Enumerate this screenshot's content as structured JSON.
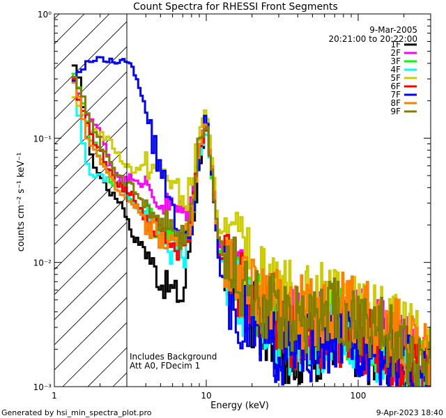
{
  "chart_data": {
    "type": "line",
    "title": "Count Spectra for RHESSI Front Segments",
    "xlabel": "Energy (keV)",
    "ylabel": "counts cm⁻² s⁻¹ keV⁻¹",
    "xscale": "log",
    "yscale": "log",
    "xlim": [
      1,
      300
    ],
    "ylim": [
      0.001,
      1
    ],
    "xticks": [
      "1",
      "10",
      "100"
    ],
    "yticks": [
      "10⁻³",
      "10⁻²",
      "10⁻¹",
      "10⁰"
    ],
    "date": "9-Mar-2005",
    "time_range": "20:21:00 to 20:22:00",
    "notes": [
      "Includes Background",
      "Att A0, FDecim 1"
    ],
    "attenuator_region_keV": [
      1,
      3
    ],
    "legend_placement": "top-right",
    "series": [
      {
        "name": "1F",
        "color": "#000000",
        "points": [
          [
            1.3,
            0.41
          ],
          [
            1.5,
            0.26
          ],
          [
            1.7,
            0.075
          ],
          [
            2,
            0.05
          ],
          [
            2.4,
            0.035
          ],
          [
            2.8,
            0.03
          ],
          [
            3.3,
            0.016
          ],
          [
            4,
            0.013
          ],
          [
            5,
            0.007
          ],
          [
            6,
            0.006
          ],
          [
            7,
            0.005
          ],
          [
            8,
            0.018
          ],
          [
            9,
            0.06
          ],
          [
            10,
            0.13
          ],
          [
            11,
            0.045
          ],
          [
            12,
            0.012
          ],
          [
            14,
            0.007
          ],
          [
            17,
            0.005
          ],
          [
            20,
            0.004
          ],
          [
            25,
            0.0028
          ],
          [
            30,
            0.0022
          ],
          [
            40,
            0.002
          ],
          [
            50,
            0.002
          ],
          [
            70,
            0.0028
          ],
          [
            100,
            0.0023
          ],
          [
            150,
            0.0018
          ],
          [
            200,
            0.0015
          ],
          [
            280,
            0.0011
          ]
        ]
      },
      {
        "name": "2F",
        "color": "#ff00ff",
        "points": [
          [
            1.3,
            0.33
          ],
          [
            1.5,
            0.21
          ],
          [
            1.7,
            0.15
          ],
          [
            2,
            0.11
          ],
          [
            2.4,
            0.06
          ],
          [
            2.8,
            0.045
          ],
          [
            3.3,
            0.05
          ],
          [
            4,
            0.04
          ],
          [
            5,
            0.03
          ],
          [
            6,
            0.028
          ],
          [
            7,
            0.025
          ],
          [
            8,
            0.03
          ],
          [
            9,
            0.09
          ],
          [
            10,
            0.14
          ],
          [
            11,
            0.05
          ],
          [
            12,
            0.015
          ],
          [
            14,
            0.01
          ],
          [
            17,
            0.007
          ],
          [
            20,
            0.005
          ],
          [
            25,
            0.004
          ],
          [
            30,
            0.0035
          ],
          [
            40,
            0.003
          ],
          [
            50,
            0.0035
          ],
          [
            70,
            0.004
          ],
          [
            100,
            0.0032
          ],
          [
            150,
            0.0025
          ],
          [
            200,
            0.002
          ],
          [
            280,
            0.0016
          ]
        ]
      },
      {
        "name": "3F",
        "color": "#00ff00",
        "points": [
          [
            1.3,
            0.35
          ],
          [
            1.5,
            0.22
          ],
          [
            1.7,
            0.11
          ],
          [
            2,
            0.07
          ],
          [
            2.4,
            0.045
          ],
          [
            2.8,
            0.04
          ],
          [
            3.3,
            0.03
          ],
          [
            4,
            0.025
          ],
          [
            5,
            0.018
          ],
          [
            6,
            0.015
          ],
          [
            7,
            0.013
          ],
          [
            8,
            0.02
          ],
          [
            9,
            0.08
          ],
          [
            10,
            0.13
          ],
          [
            11,
            0.045
          ],
          [
            12,
            0.013
          ],
          [
            14,
            0.009
          ],
          [
            17,
            0.006
          ],
          [
            20,
            0.005
          ],
          [
            25,
            0.004
          ],
          [
            30,
            0.003
          ],
          [
            40,
            0.0028
          ],
          [
            50,
            0.0028
          ],
          [
            70,
            0.0033
          ],
          [
            100,
            0.0028
          ],
          [
            150,
            0.0022
          ],
          [
            200,
            0.0018
          ],
          [
            280,
            0.0014
          ]
        ]
      },
      {
        "name": "4F",
        "color": "#00ffff",
        "points": [
          [
            1.3,
            0.38
          ],
          [
            1.5,
            0.12
          ],
          [
            1.7,
            0.05
          ],
          [
            2,
            0.05
          ],
          [
            2.4,
            0.045
          ],
          [
            2.8,
            0.04
          ],
          [
            3.3,
            0.03
          ],
          [
            4,
            0.025
          ],
          [
            5,
            0.015
          ],
          [
            6,
            0.012
          ],
          [
            7,
            0.01
          ],
          [
            8,
            0.02
          ],
          [
            9,
            0.07
          ],
          [
            10,
            0.12
          ],
          [
            11,
            0.045
          ],
          [
            12,
            0.012
          ],
          [
            14,
            0.008
          ],
          [
            17,
            0.005
          ],
          [
            20,
            0.004
          ],
          [
            25,
            0.003
          ],
          [
            30,
            0.0025
          ],
          [
            40,
            0.0022
          ],
          [
            50,
            0.0022
          ],
          [
            70,
            0.003
          ],
          [
            100,
            0.0025
          ],
          [
            150,
            0.002
          ],
          [
            200,
            0.0016
          ],
          [
            280,
            0.0012
          ]
        ]
      },
      {
        "name": "5F",
        "color": "#cccc00",
        "points": [
          [
            1.3,
            0.21
          ],
          [
            1.5,
            0.17
          ],
          [
            1.7,
            0.12
          ],
          [
            2,
            0.11
          ],
          [
            2.4,
            0.09
          ],
          [
            2.8,
            0.065
          ],
          [
            3.3,
            0.055
          ],
          [
            4,
            0.06
          ],
          [
            5,
            0.055
          ],
          [
            6,
            0.045
          ],
          [
            7,
            0.03
          ],
          [
            8,
            0.04
          ],
          [
            9,
            0.12
          ],
          [
            10,
            0.16
          ],
          [
            11,
            0.06
          ],
          [
            12,
            0.02
          ],
          [
            14,
            0.015
          ],
          [
            17,
            0.012
          ],
          [
            20,
            0.009
          ],
          [
            25,
            0.007
          ],
          [
            30,
            0.006
          ],
          [
            40,
            0.005
          ],
          [
            50,
            0.005
          ],
          [
            70,
            0.005
          ],
          [
            100,
            0.004
          ],
          [
            150,
            0.0032
          ],
          [
            200,
            0.0025
          ],
          [
            280,
            0.002
          ]
        ]
      },
      {
        "name": "6F",
        "color": "#ff0000",
        "points": [
          [
            1.3,
            0.39
          ],
          [
            1.5,
            0.18
          ],
          [
            1.7,
            0.11
          ],
          [
            2,
            0.08
          ],
          [
            2.4,
            0.05
          ],
          [
            2.8,
            0.04
          ],
          [
            3.3,
            0.035
          ],
          [
            4,
            0.022
          ],
          [
            5,
            0.017
          ],
          [
            6,
            0.014
          ],
          [
            7,
            0.012
          ],
          [
            8,
            0.022
          ],
          [
            9,
            0.08
          ],
          [
            10,
            0.13
          ],
          [
            11,
            0.048
          ],
          [
            12,
            0.013
          ],
          [
            14,
            0.009
          ],
          [
            17,
            0.006
          ],
          [
            20,
            0.005
          ],
          [
            25,
            0.0035
          ],
          [
            30,
            0.003
          ],
          [
            40,
            0.0025
          ],
          [
            50,
            0.0025
          ],
          [
            70,
            0.003
          ],
          [
            100,
            0.0025
          ],
          [
            150,
            0.002
          ],
          [
            200,
            0.0016
          ],
          [
            280,
            0.0012
          ]
        ]
      },
      {
        "name": "7F",
        "color": "#0000ff",
        "points": [
          [
            1.3,
            0.29
          ],
          [
            1.5,
            0.36
          ],
          [
            1.7,
            0.42
          ],
          [
            2,
            0.42
          ],
          [
            2.4,
            0.42
          ],
          [
            2.8,
            0.42
          ],
          [
            3.3,
            0.37
          ],
          [
            4,
            0.18
          ],
          [
            5,
            0.05
          ],
          [
            6,
            0.03
          ],
          [
            7,
            0.014
          ],
          [
            8,
            0.02
          ],
          [
            9,
            0.08
          ],
          [
            10,
            0.15
          ],
          [
            11,
            0.05
          ],
          [
            12,
            0.01
          ],
          [
            14,
            0.006
          ],
          [
            17,
            0.004
          ],
          [
            20,
            0.003
          ],
          [
            25,
            0.0025
          ],
          [
            30,
            0.002
          ],
          [
            40,
            0.002
          ],
          [
            50,
            0.002
          ],
          [
            70,
            0.0028
          ],
          [
            100,
            0.0024
          ],
          [
            150,
            0.0019
          ],
          [
            200,
            0.0015
          ],
          [
            280,
            0.0011
          ]
        ]
      },
      {
        "name": "8F",
        "color": "#ff8000",
        "points": [
          [
            1.3,
            0.36
          ],
          [
            1.5,
            0.17
          ],
          [
            1.7,
            0.085
          ],
          [
            2,
            0.07
          ],
          [
            2.4,
            0.045
          ],
          [
            2.8,
            0.035
          ],
          [
            3.3,
            0.03
          ],
          [
            4,
            0.022
          ],
          [
            5,
            0.017
          ],
          [
            6,
            0.015
          ],
          [
            7,
            0.013
          ],
          [
            8,
            0.02
          ],
          [
            9,
            0.08
          ],
          [
            10,
            0.14
          ],
          [
            11,
            0.05
          ],
          [
            12,
            0.015
          ],
          [
            14,
            0.01
          ],
          [
            17,
            0.007
          ],
          [
            20,
            0.006
          ],
          [
            25,
            0.005
          ],
          [
            30,
            0.0045
          ],
          [
            40,
            0.004
          ],
          [
            50,
            0.004
          ],
          [
            70,
            0.0045
          ],
          [
            100,
            0.0038
          ],
          [
            150,
            0.003
          ],
          [
            200,
            0.0024
          ],
          [
            280,
            0.0018
          ]
        ]
      },
      {
        "name": "9F",
        "color": "#808000",
        "points": [
          [
            1.3,
            0.37
          ],
          [
            1.5,
            0.23
          ],
          [
            1.7,
            0.15
          ],
          [
            2,
            0.09
          ],
          [
            2.4,
            0.06
          ],
          [
            2.8,
            0.045
          ],
          [
            3.3,
            0.04
          ],
          [
            4,
            0.028
          ],
          [
            5,
            0.022
          ],
          [
            6,
            0.018
          ],
          [
            7,
            0.015
          ],
          [
            8,
            0.025
          ],
          [
            9,
            0.09
          ],
          [
            10,
            0.14
          ],
          [
            11,
            0.05
          ],
          [
            12,
            0.015
          ],
          [
            14,
            0.01
          ],
          [
            17,
            0.007
          ],
          [
            20,
            0.006
          ],
          [
            25,
            0.0045
          ],
          [
            30,
            0.004
          ],
          [
            40,
            0.0035
          ],
          [
            50,
            0.0035
          ],
          [
            70,
            0.004
          ],
          [
            100,
            0.0033
          ],
          [
            150,
            0.0026
          ],
          [
            200,
            0.002
          ],
          [
            280,
            0.0016
          ]
        ]
      }
    ]
  },
  "footer": {
    "generator": "Generated by hsi_min_spectra_plot.pro",
    "timestamp": "9-Apr-2023 18:40"
  }
}
